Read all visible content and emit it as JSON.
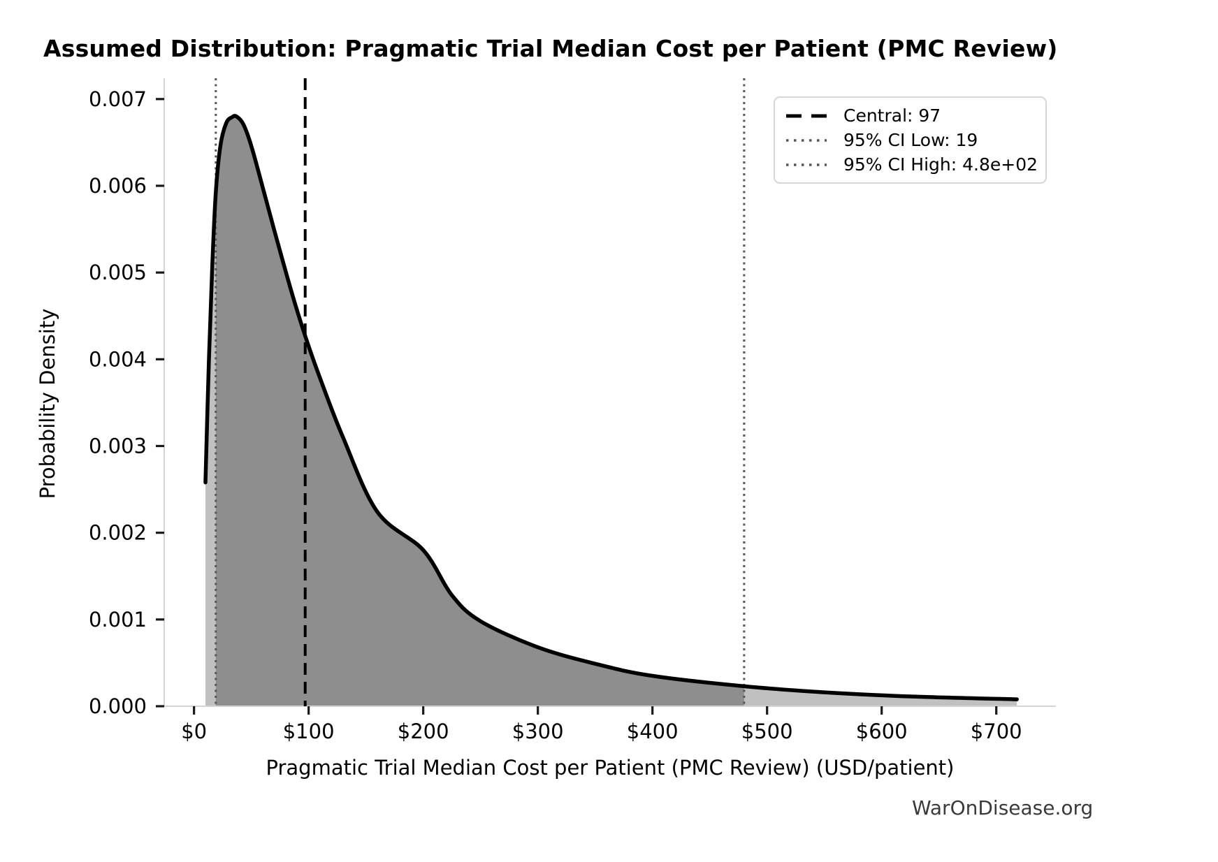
{
  "page": {
    "background": "#ffffff"
  },
  "legend": {
    "items": [
      {
        "label": "Central: 97",
        "style": "dashed",
        "color": "#000000"
      },
      {
        "label": "95% CI Low: 19",
        "style": "dotted",
        "color": "#555555"
      },
      {
        "label": "95% CI High: 4.8e+02",
        "style": "dotted",
        "color": "#555555"
      }
    ]
  },
  "footer": {
    "watermark": "WarOnDisease.org"
  },
  "chart_data": {
    "type": "area",
    "title": "Assumed Distribution: Pragmatic Trial Median Cost per Patient (PMC Review)",
    "xlabel": "Pragmatic Trial Median Cost per Patient (PMC Review) (USD/patient)",
    "ylabel": "Probability Density",
    "xlim": [
      -26,
      752
    ],
    "ylim": [
      0,
      0.00724
    ],
    "grid": false,
    "legend_position": "upper right",
    "x_ticks": [
      {
        "value": 0,
        "label": "$0"
      },
      {
        "value": 100,
        "label": "$100"
      },
      {
        "value": 200,
        "label": "$200"
      },
      {
        "value": 300,
        "label": "$300"
      },
      {
        "value": 400,
        "label": "$400"
      },
      {
        "value": 500,
        "label": "$500"
      },
      {
        "value": 600,
        "label": "$600"
      },
      {
        "value": 700,
        "label": "$700"
      }
    ],
    "y_ticks": [
      {
        "value": 0.0,
        "label": "0.000"
      },
      {
        "value": 0.001,
        "label": "0.001"
      },
      {
        "value": 0.002,
        "label": "0.002"
      },
      {
        "value": 0.003,
        "label": "0.003"
      },
      {
        "value": 0.004,
        "label": "0.004"
      },
      {
        "value": 0.005,
        "label": "0.005"
      },
      {
        "value": 0.006,
        "label": "0.006"
      },
      {
        "value": 0.007,
        "label": "0.007"
      }
    ],
    "curve": {
      "name": "probability-density-curve",
      "color": "#000000",
      "x": [
        10,
        13,
        16,
        19,
        23,
        28,
        33,
        37,
        43,
        50,
        60,
        70,
        85,
        97,
        110,
        130,
        160,
        200,
        225,
        250,
        300,
        350,
        400,
        480,
        550,
        630,
        718
      ],
      "y": [
        0.00258,
        0.004,
        0.0051,
        0.00592,
        0.00646,
        0.00672,
        0.00679,
        0.0068,
        0.00671,
        0.00646,
        0.00598,
        0.00549,
        0.00478,
        0.00427,
        0.00378,
        0.0031,
        0.00224,
        0.0018,
        0.00128,
        0.00098,
        0.00068,
        0.00049,
        0.00035,
        0.00023,
        0.00016,
        0.00011,
        8e-05
      ]
    },
    "fill": {
      "curve_start": 10,
      "curve_end": 718,
      "under_curve_color": "#c0c0c0",
      "ci_region_color": "#8e8e8e",
      "ci_from": 19,
      "ci_to": 480
    },
    "vlines": [
      {
        "name": "central",
        "value": 97,
        "label": "Central: 97",
        "style": "dashed",
        "color": "#000000"
      },
      {
        "name": "ci-low",
        "value": 19,
        "label": "95% CI Low: 19",
        "style": "dotted",
        "color": "#555555"
      },
      {
        "name": "ci-high",
        "value": 480,
        "label": "95% CI High: 4.8e+02",
        "style": "dotted",
        "color": "#555555"
      }
    ],
    "distribution_summary": {
      "central": 97,
      "ci95_low": 19,
      "ci95_high": 480
    }
  }
}
